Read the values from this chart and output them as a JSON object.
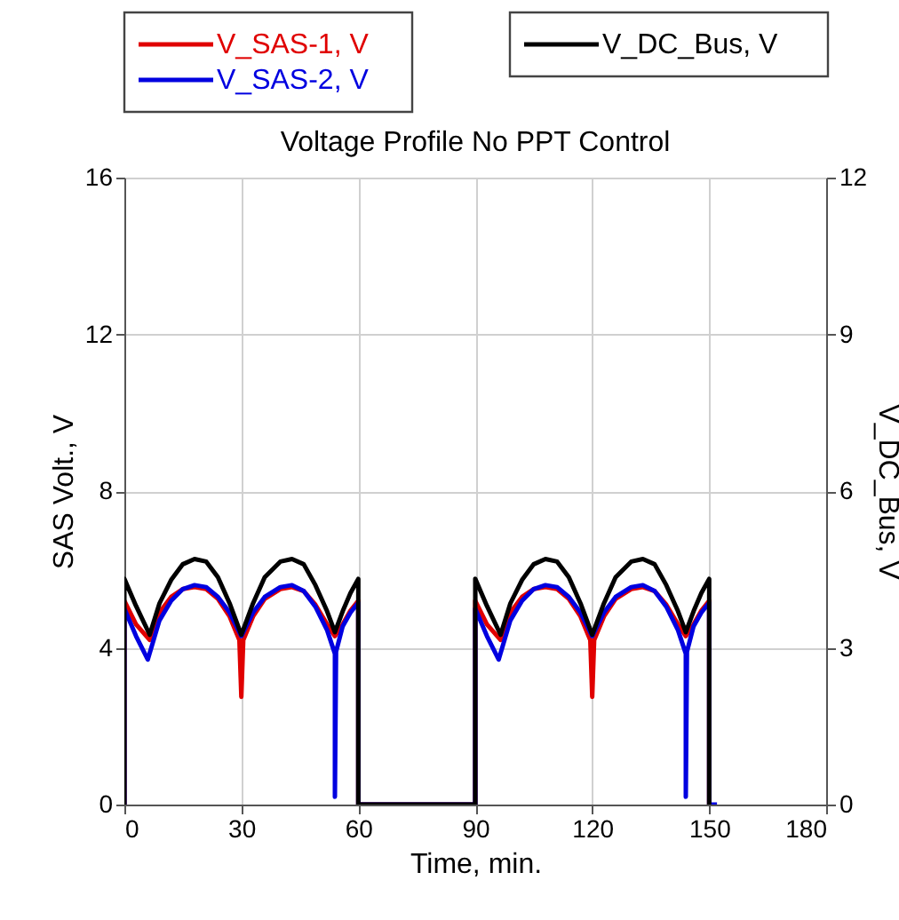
{
  "chart_data": {
    "type": "line",
    "title": "Voltage Profile No PPT Control",
    "xlabel": "Time, min.",
    "ylabel": "SAS Volt., V",
    "y2label": "V_DC_Bus, V",
    "xlim": [
      0,
      180
    ],
    "xticks": [
      0,
      30,
      60,
      90,
      120,
      150,
      180
    ],
    "ylim": [
      0,
      16
    ],
    "yticks": [
      0,
      4,
      8,
      12,
      16
    ],
    "y2lim": [
      0,
      12
    ],
    "y2ticks": [
      0,
      3,
      6,
      9,
      12
    ],
    "grid": true,
    "legend": "top",
    "line_style": "solid",
    "marker": "none",
    "series": [
      {
        "name": "V_SAS-1, V",
        "color": "#e00000",
        "axis": "y",
        "x": [
          0,
          0,
          3,
          6.5,
          9,
          12,
          15,
          18,
          21,
          24,
          27,
          29.5,
          30,
          30.5,
          33,
          36,
          40,
          43,
          46,
          49,
          52,
          54,
          56,
          58,
          60,
          60,
          90,
          90,
          93,
          96.5,
          99,
          102,
          105,
          108,
          111,
          114,
          117,
          119.5,
          120,
          120.5,
          123,
          126,
          130,
          133,
          136,
          139,
          142,
          144,
          146,
          148,
          150,
          150
        ],
        "values": [
          0,
          5.2,
          4.6,
          4.2,
          4.9,
          5.3,
          5.5,
          5.55,
          5.5,
          5.25,
          4.8,
          4.2,
          2.75,
          4.2,
          4.8,
          5.25,
          5.5,
          5.55,
          5.45,
          5.1,
          4.6,
          4.3,
          4.6,
          4.95,
          5.2,
          0,
          0,
          5.2,
          4.6,
          4.2,
          4.9,
          5.3,
          5.5,
          5.55,
          5.5,
          5.25,
          4.8,
          4.2,
          2.75,
          4.2,
          4.8,
          5.25,
          5.5,
          5.55,
          5.45,
          5.1,
          4.6,
          4.3,
          4.6,
          4.95,
          5.2,
          0
        ]
      },
      {
        "name": "V_SAS-2, V",
        "color": "#0000e0",
        "axis": "y",
        "x": [
          0,
          0,
          3,
          6,
          9,
          12,
          15,
          18,
          21,
          24,
          27,
          30,
          33,
          36,
          40,
          43,
          46,
          49,
          52,
          54,
          54,
          54.3,
          56,
          58,
          60,
          60,
          90,
          90,
          93,
          96,
          99,
          102,
          105,
          108,
          111,
          114,
          117,
          120,
          123,
          126,
          130,
          133,
          136,
          139,
          142,
          144,
          144,
          144.3,
          146,
          148,
          150,
          150,
          152
        ],
        "values": [
          0,
          5.0,
          4.3,
          3.7,
          4.7,
          5.2,
          5.5,
          5.6,
          5.55,
          5.3,
          4.9,
          4.3,
          4.9,
          5.3,
          5.55,
          5.6,
          5.45,
          5.05,
          4.45,
          3.85,
          0.2,
          3.9,
          4.55,
          4.9,
          5.15,
          0,
          0,
          5.0,
          4.3,
          3.7,
          4.7,
          5.2,
          5.5,
          5.6,
          5.55,
          5.3,
          4.9,
          4.3,
          4.9,
          5.3,
          5.55,
          5.6,
          5.45,
          5.05,
          4.45,
          3.85,
          0.2,
          3.9,
          4.55,
          4.9,
          5.15,
          0,
          0
        ]
      },
      {
        "name": "V_DC_Bus, V",
        "color": "#000000",
        "axis": "y2",
        "x": [
          0,
          0,
          3,
          6.5,
          9,
          12,
          15,
          18,
          21,
          24,
          27,
          30,
          33,
          36,
          40,
          43,
          46,
          49,
          52,
          54,
          56,
          58,
          60,
          60,
          90,
          90,
          93,
          96.5,
          99,
          102,
          105,
          108,
          111,
          114,
          117,
          120,
          123,
          126,
          130,
          133,
          136,
          139,
          142,
          144,
          146,
          148,
          150,
          150
        ],
        "values": [
          0,
          4.32,
          3.8,
          3.25,
          3.85,
          4.3,
          4.6,
          4.7,
          4.65,
          4.35,
          3.85,
          3.25,
          3.85,
          4.35,
          4.65,
          4.7,
          4.6,
          4.2,
          3.7,
          3.3,
          3.7,
          4.05,
          4.32,
          0,
          0,
          4.32,
          3.8,
          3.25,
          3.85,
          4.3,
          4.6,
          4.7,
          4.65,
          4.35,
          3.85,
          3.25,
          3.85,
          4.35,
          4.65,
          4.7,
          4.6,
          4.2,
          3.7,
          3.3,
          3.7,
          4.05,
          4.32,
          0
        ]
      }
    ]
  }
}
